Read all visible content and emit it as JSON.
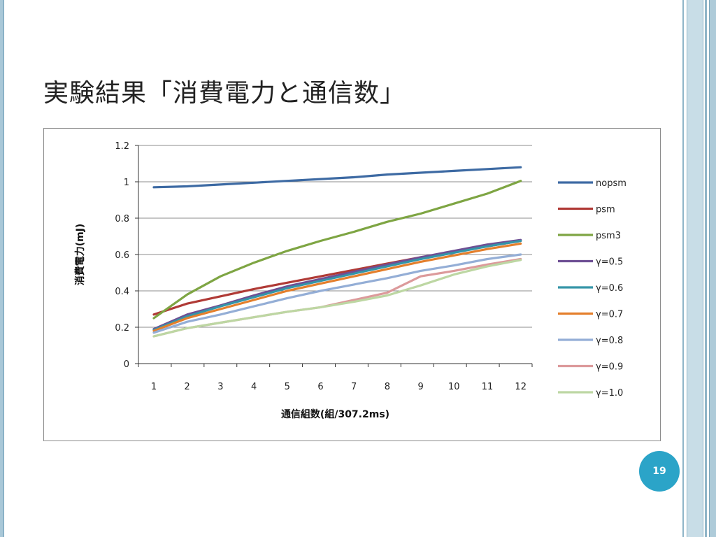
{
  "slide": {
    "title": "実験結果「消費電力と通信数」",
    "page_number": "19"
  },
  "colors": {
    "badge": "#2ba4c8",
    "border_accent": "#8fb5c8"
  },
  "chart_data": {
    "type": "line",
    "title": "",
    "xlabel": "通信組数(組/307.2ms)",
    "ylabel": "消費電力(mJ)",
    "categories": [
      "1",
      "2",
      "3",
      "4",
      "5",
      "6",
      "7",
      "8",
      "9",
      "10",
      "11",
      "12"
    ],
    "ylim": [
      0,
      1.2
    ],
    "yticks": [
      "0",
      "0.2",
      "0.4",
      "0.6",
      "0.8",
      "1",
      "1.2"
    ],
    "grid": true,
    "legend": "right",
    "series": [
      {
        "name": "nopsm",
        "color": "#3d6aa3",
        "values": [
          0.97,
          0.975,
          0.985,
          0.995,
          1.005,
          1.015,
          1.025,
          1.04,
          1.05,
          1.06,
          1.07,
          1.08
        ]
      },
      {
        "name": "psm",
        "color": "#b03a36",
        "values": [
          0.27,
          0.33,
          0.37,
          0.41,
          0.445,
          0.48,
          0.515,
          0.55,
          0.585,
          0.615,
          0.645,
          0.675
        ]
      },
      {
        "name": "psm3",
        "color": "#7ea543",
        "values": [
          0.25,
          0.38,
          0.48,
          0.555,
          0.62,
          0.675,
          0.725,
          0.78,
          0.825,
          0.88,
          0.935,
          1.005
        ]
      },
      {
        "name": "γ=0.5",
        "color": "#6e4f94",
        "values": [
          0.19,
          0.27,
          0.32,
          0.375,
          0.425,
          0.465,
          0.505,
          0.545,
          0.585,
          0.62,
          0.655,
          0.68
        ]
      },
      {
        "name": "γ=0.6",
        "color": "#3595a8",
        "values": [
          0.185,
          0.26,
          0.315,
          0.365,
          0.415,
          0.455,
          0.495,
          0.535,
          0.575,
          0.61,
          0.645,
          0.675
        ]
      },
      {
        "name": "γ=0.7",
        "color": "#e47f2c",
        "values": [
          0.18,
          0.25,
          0.3,
          0.35,
          0.4,
          0.44,
          0.48,
          0.52,
          0.56,
          0.595,
          0.63,
          0.66
        ]
      },
      {
        "name": "γ=0.8",
        "color": "#94aed6",
        "values": [
          0.17,
          0.23,
          0.27,
          0.315,
          0.36,
          0.4,
          0.435,
          0.47,
          0.51,
          0.54,
          0.575,
          0.6
        ]
      },
      {
        "name": "γ=0.9",
        "color": "#dc9a9b",
        "values": [
          0.15,
          0.195,
          0.225,
          0.255,
          0.285,
          0.31,
          0.35,
          0.39,
          0.48,
          0.51,
          0.545,
          0.575
        ]
      },
      {
        "name": "γ=1.0",
        "color": "#bdd7a3",
        "values": [
          0.15,
          0.195,
          0.225,
          0.255,
          0.285,
          0.31,
          0.34,
          0.375,
          0.43,
          0.49,
          0.535,
          0.57
        ]
      }
    ]
  }
}
